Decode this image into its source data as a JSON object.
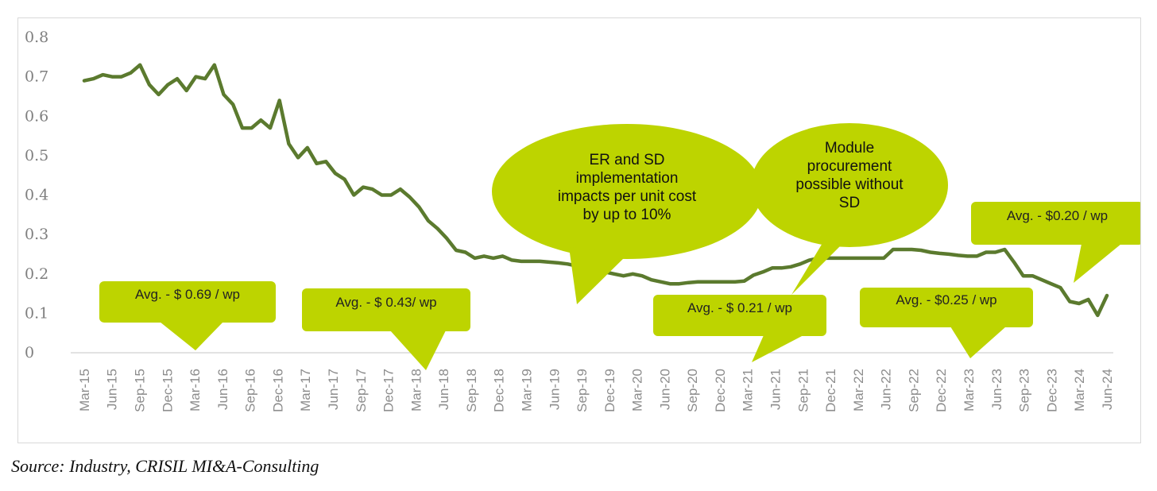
{
  "source": "Source: Industry, CRISIL MI&A-Consulting",
  "colors": {
    "line": "#5b7a2e",
    "callout": "#bdd400",
    "axis": "#d9d9d9",
    "tick": "#8c8c8c"
  },
  "chart_data": {
    "type": "line",
    "title": "",
    "xlabel": "",
    "ylabel": "",
    "ylim": [
      0,
      0.8
    ],
    "yticks": [
      "0",
      "0.1",
      "0.2",
      "0.3",
      "0.4",
      "0.5",
      "0.6",
      "0.7",
      "0.8"
    ],
    "xtick_labels": [
      "Mar-15",
      "Jun-15",
      "Sep-15",
      "Dec-15",
      "Mar-16",
      "Jun-16",
      "Sep-16",
      "Dec-16",
      "Mar-17",
      "Jun-17",
      "Sep-17",
      "Dec-17",
      "Mar-18",
      "Jun-18",
      "Sep-18",
      "Dec-18",
      "Mar-19",
      "Jun-19",
      "Sep-19",
      "Dec-19",
      "Mar-20",
      "Jun-20",
      "Sep-20",
      "Dec-20",
      "Mar-21",
      "Jun-21",
      "Sep-21",
      "Dec-21",
      "Mar-22",
      "Jun-22",
      "Sep-22",
      "Dec-22",
      "Mar-23",
      "Jun-23",
      "Sep-23",
      "Dec-23",
      "Mar-24",
      "Jun-24"
    ],
    "grid": false,
    "legend": "none",
    "series": [
      {
        "values": [
          0.69,
          0.695,
          0.705,
          0.7,
          0.7,
          0.71,
          0.73,
          0.68,
          0.655,
          0.68,
          0.695,
          0.665,
          0.7,
          0.695,
          0.73,
          0.655,
          0.63,
          0.57,
          0.57,
          0.59,
          0.57,
          0.64,
          0.53,
          0.495,
          0.52,
          0.48,
          0.485,
          0.455,
          0.44,
          0.4,
          0.42,
          0.415,
          0.4,
          0.4,
          0.415,
          0.395,
          0.37,
          0.335,
          0.315,
          0.29,
          0.26,
          0.255,
          0.24,
          0.245,
          0.24,
          0.245,
          0.235,
          0.232,
          0.232,
          0.232,
          0.23,
          0.228,
          0.225,
          0.22,
          0.215,
          0.21,
          0.205,
          0.2,
          0.195,
          0.2,
          0.195,
          0.185,
          0.18,
          0.175,
          0.175,
          0.178,
          0.18,
          0.18,
          0.18,
          0.18,
          0.18,
          0.182,
          0.197,
          0.205,
          0.215,
          0.215,
          0.218,
          0.225,
          0.235,
          0.24,
          0.24,
          0.24,
          0.24,
          0.24,
          0.24,
          0.24,
          0.24,
          0.262,
          0.262,
          0.262,
          0.26,
          0.255,
          0.252,
          0.25,
          0.247,
          0.245,
          0.245,
          0.255,
          0.255,
          0.262,
          0.23,
          0.195,
          0.195,
          0.185,
          0.175,
          0.165,
          0.13,
          0.125,
          0.135,
          0.095,
          0.145
        ]
      }
    ],
    "annotations": [
      {
        "text": "Avg. - $ 0.69 / wp"
      },
      {
        "text": "Avg. - $ 0.43/ wp"
      },
      {
        "text": "Avg. - $ 0.21 / wp"
      },
      {
        "text": "Avg. - $0.25 / wp"
      },
      {
        "text": "Avg. - $0.20 / wp"
      },
      {
        "lines": [
          "ER and SD",
          "implementation",
          "impacts per unit cost",
          "by up to 10%"
        ]
      },
      {
        "lines": [
          "Module",
          "procurement",
          "possible without",
          "SD"
        ]
      }
    ]
  }
}
